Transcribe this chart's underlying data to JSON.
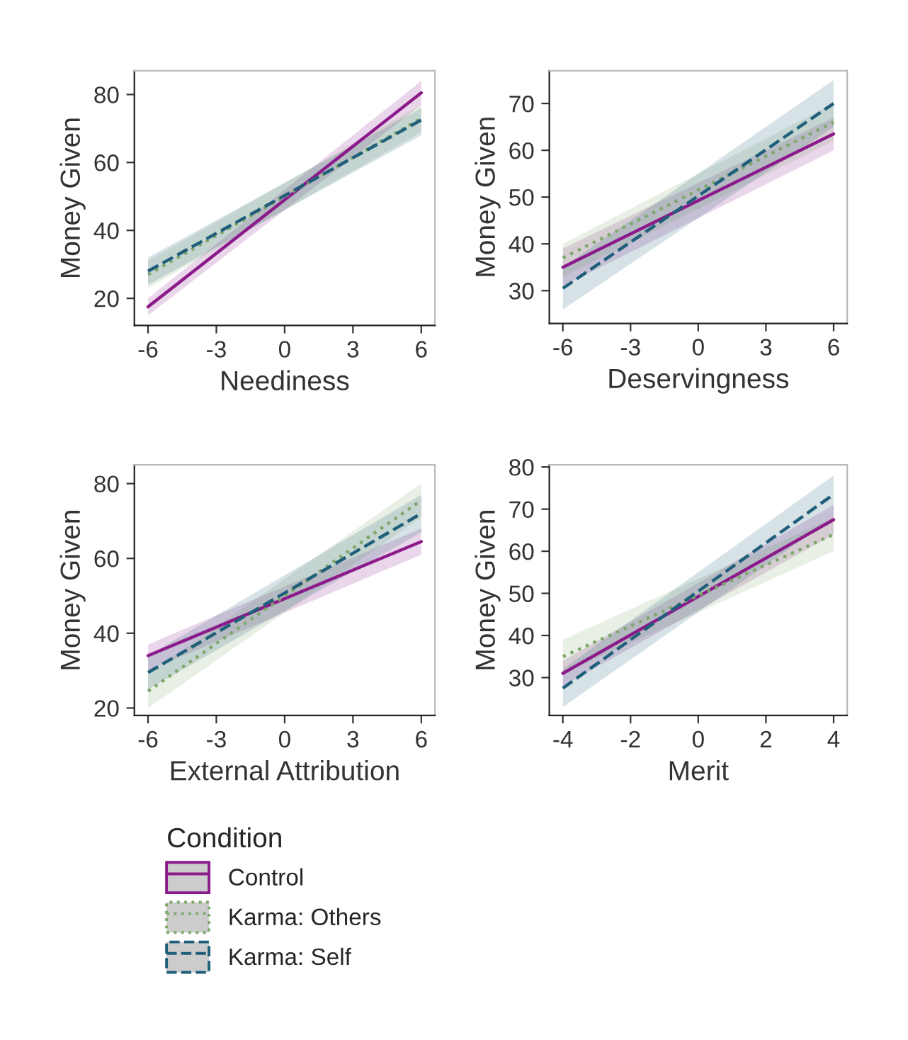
{
  "chart_data": [
    {
      "type": "line",
      "xlabel": "Neediness",
      "ylabel": "Money Given",
      "xlim": [
        -6.6,
        6.6
      ],
      "xticks": [
        -6,
        -3,
        0,
        3,
        6
      ],
      "ylim": [
        12,
        87
      ],
      "yticks": [
        20,
        40,
        60,
        80
      ],
      "grid": false,
      "legend": "bottom",
      "legend_title": "Condition",
      "series": [
        {
          "name": "Control",
          "color": "#8b1a8b",
          "line_style": "solid",
          "x": [
            -6,
            6
          ],
          "values": [
            17.5,
            80.5
          ],
          "lower": [
            15,
            77
          ],
          "upper": [
            20,
            84
          ]
        },
        {
          "name": "Karma: Others",
          "color": "#7fa86a",
          "line_style": "dotted",
          "x": [
            -6,
            6
          ],
          "values": [
            27,
            73
          ],
          "lower": [
            23,
            69
          ],
          "upper": [
            31,
            77
          ]
        },
        {
          "name": "Karma: Self",
          "color": "#1f5f7a",
          "line_style": "dashed",
          "x": [
            -6,
            6
          ],
          "values": [
            28,
            72.5
          ],
          "lower": [
            24,
            68
          ],
          "upper": [
            32,
            76
          ]
        }
      ]
    },
    {
      "type": "line",
      "xlabel": "Deservingness",
      "ylabel": "Money Given",
      "xlim": [
        -6.6,
        6.6
      ],
      "xticks": [
        -6,
        -3,
        0,
        3,
        6
      ],
      "ylim": [
        23,
        77
      ],
      "yticks": [
        30,
        40,
        50,
        60,
        70
      ],
      "grid": false,
      "series": [
        {
          "color": "#8b1a8b",
          "line_style": "solid",
          "x": [
            -6,
            6
          ],
          "values": [
            35,
            63.5
          ],
          "lower": [
            31,
            60
          ],
          "upper": [
            39,
            67
          ]
        },
        {
          "color": "#7fa86a",
          "line_style": "dotted",
          "x": [
            -6,
            6
          ],
          "values": [
            37,
            66
          ],
          "lower": [
            33,
            62
          ],
          "upper": [
            40,
            70
          ]
        },
        {
          "color": "#1f5f7a",
          "line_style": "dashed",
          "x": [
            -6,
            6
          ],
          "values": [
            30.5,
            70
          ],
          "lower": [
            26,
            65
          ],
          "upper": [
            35,
            75
          ]
        }
      ]
    },
    {
      "type": "line",
      "xlabel": "External Attribution",
      "ylabel": "Money Given",
      "xlim": [
        -6.6,
        6.6
      ],
      "xticks": [
        -6,
        -3,
        0,
        3,
        6
      ],
      "ylim": [
        18,
        85
      ],
      "yticks": [
        20,
        40,
        60,
        80
      ],
      "grid": false,
      "series": [
        {
          "color": "#8b1a8b",
          "line_style": "solid",
          "x": [
            -6,
            6
          ],
          "values": [
            34,
            64.5
          ],
          "lower": [
            30,
            61
          ],
          "upper": [
            37,
            68
          ]
        },
        {
          "color": "#7fa86a",
          "line_style": "dotted",
          "x": [
            -6,
            6
          ],
          "values": [
            24.5,
            75.5
          ],
          "lower": [
            20,
            71
          ],
          "upper": [
            29,
            80
          ]
        },
        {
          "color": "#1f5f7a",
          "line_style": "dashed",
          "x": [
            -6,
            6
          ],
          "values": [
            29.5,
            72
          ],
          "lower": [
            25,
            67
          ],
          "upper": [
            34,
            77
          ]
        }
      ]
    },
    {
      "type": "line",
      "xlabel": "Merit",
      "ylabel": "Money Given",
      "xlim": [
        -4.4,
        4.4
      ],
      "xticks": [
        -4,
        -2,
        0,
        2,
        4
      ],
      "ylim": [
        21,
        80.5
      ],
      "yticks": [
        30,
        40,
        50,
        60,
        70,
        80
      ],
      "grid": false,
      "series": [
        {
          "color": "#8b1a8b",
          "line_style": "solid",
          "x": [
            -4,
            4
          ],
          "values": [
            31,
            67.5
          ],
          "lower": [
            28,
            64
          ],
          "upper": [
            34,
            71
          ]
        },
        {
          "color": "#7fa86a",
          "line_style": "dotted",
          "x": [
            -4,
            4
          ],
          "values": [
            35,
            64
          ],
          "lower": [
            31,
            60
          ],
          "upper": [
            39,
            68
          ]
        },
        {
          "color": "#1f5f7a",
          "line_style": "dashed",
          "x": [
            -4,
            4
          ],
          "values": [
            27.5,
            73.5
          ],
          "lower": [
            23,
            68
          ],
          "upper": [
            32,
            78
          ]
        }
      ]
    }
  ]
}
